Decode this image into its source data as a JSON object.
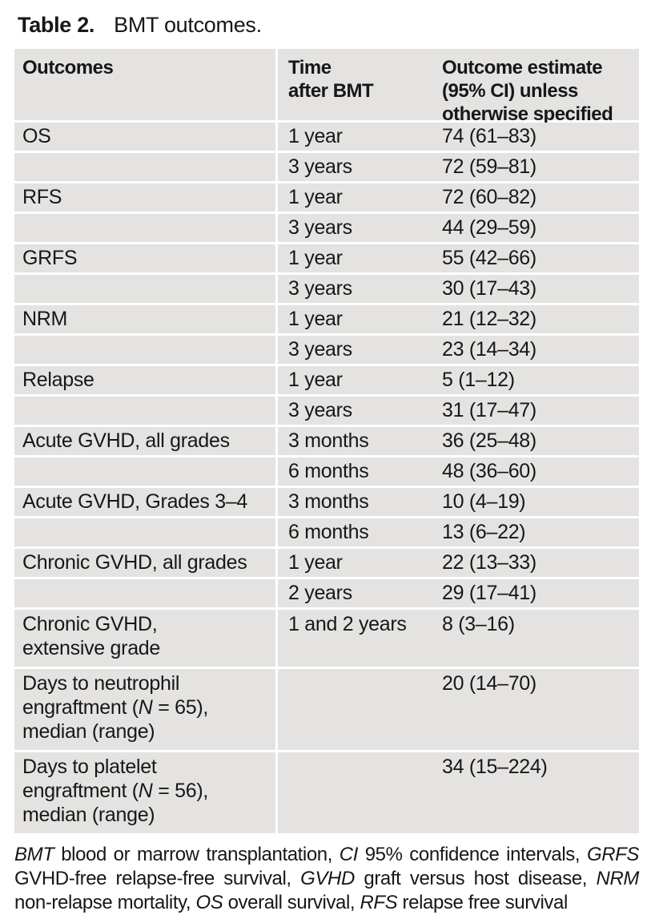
{
  "colors": {
    "row_bg": "#e4e3e1",
    "text": "#171717",
    "page_bg": "#ffffff"
  },
  "caption": {
    "label": "Table 2.",
    "text": "BMT outcomes."
  },
  "table": {
    "columns": [
      {
        "lines": [
          "Outcomes"
        ]
      },
      {
        "lines": [
          "Time",
          "after BMT"
        ]
      },
      {
        "lines": [
          "Outcome estimate",
          "(95% CI) unless",
          "otherwise specified"
        ]
      }
    ],
    "rows": [
      {
        "outcome": "OS",
        "time": "1 year",
        "estimate": "74 (61–83)"
      },
      {
        "outcome": "",
        "time": "3 years",
        "estimate": "72 (59–81)"
      },
      {
        "outcome": "RFS",
        "time": "1 year",
        "estimate": "72 (60–82)"
      },
      {
        "outcome": "",
        "time": "3 years",
        "estimate": "44 (29–59)"
      },
      {
        "outcome": "GRFS",
        "time": "1 year",
        "estimate": "55 (42–66)"
      },
      {
        "outcome": "",
        "time": "3 years",
        "estimate": "30 (17–43)"
      },
      {
        "outcome": "NRM",
        "time": "1 year",
        "estimate": "21 (12–32)"
      },
      {
        "outcome": "",
        "time": "3 years",
        "estimate": "23 (14–34)"
      },
      {
        "outcome": "Relapse",
        "time": "1 year",
        "estimate": "5 (1–12)"
      },
      {
        "outcome": "",
        "time": "3 years",
        "estimate": "31 (17–47)"
      },
      {
        "outcome": "Acute GVHD, all grades",
        "time": "3 months",
        "estimate": "36 (25–48)"
      },
      {
        "outcome": "",
        "time": "6 months",
        "estimate": "48 (36–60)"
      },
      {
        "outcome": "Acute GVHD, Grades 3–4",
        "time": "3 months",
        "estimate": "10 (4–19)"
      },
      {
        "outcome": "",
        "time": "6 months",
        "estimate": "13 (6–22)"
      },
      {
        "outcome": "Chronic GVHD, all grades",
        "time": "1 year",
        "estimate": "22 (13–33)"
      },
      {
        "outcome": "",
        "time": "2 years",
        "estimate": "29 (17–41)"
      },
      {
        "outcome": [
          "Chronic GVHD,",
          "extensive grade"
        ],
        "time": "1 and 2 years",
        "estimate": "8 (3–16)"
      },
      {
        "outcome": [
          "Days to neutrophil",
          [
            {
              "text": "engraftment ("
            },
            {
              "text": "N",
              "italic": true
            },
            {
              "text": " = 65),"
            }
          ],
          "median (range)"
        ],
        "time": "",
        "estimate": "20 (14–70)",
        "tall": true
      },
      {
        "outcome": [
          "Days to platelet",
          [
            {
              "text": "engraftment ("
            },
            {
              "text": "N",
              "italic": true
            },
            {
              "text": " = 56),"
            }
          ],
          "median (range)"
        ],
        "time": "",
        "estimate": "34 (15–224)",
        "tall": true
      }
    ]
  },
  "footnote": {
    "segments": [
      {
        "text": "BMT",
        "italic": true
      },
      {
        "text": " blood or marrow transplantation, "
      },
      {
        "text": "CI",
        "italic": true
      },
      {
        "text": " 95% confidence intervals, "
      },
      {
        "text": "GRFS",
        "italic": true
      },
      {
        "text": " GVHD-free relapse-free survival, "
      },
      {
        "text": "GVHD",
        "italic": true
      },
      {
        "text": " graft versus host disease, "
      },
      {
        "text": "NRM",
        "italic": true
      },
      {
        "text": " non-relapse mortality, "
      },
      {
        "text": "OS",
        "italic": true
      },
      {
        "text": " overall survival, "
      },
      {
        "text": "RFS",
        "italic": true
      },
      {
        "text": " relapse free survival"
      }
    ]
  }
}
